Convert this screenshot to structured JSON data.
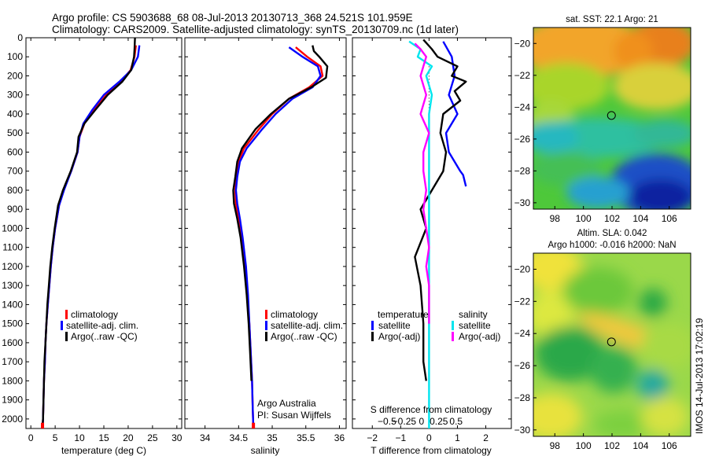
{
  "header": {
    "line1": "Argo profile: CS 5903688_68 08-Jul-2013 20130713_368 24.521S 101.959E",
    "line2": "Climatology: CARS2009. Satellite-adjusted climatology: synTS_20130709.nc (1d later)"
  },
  "credits": {
    "org": "Argo Australia",
    "pi": "PI: Susan Wijffels",
    "stamp": "IMOS 14-Jul-2013 17:02:19"
  },
  "colors": {
    "climatology": "#ff0000",
    "satellite": "#0000ff",
    "argo": "#000000",
    "sal_satellite": "#00e5ee",
    "sal_argo": "#ff00ff"
  },
  "chart_data": [
    {
      "type": "line",
      "name": "temperature",
      "xlabel": "temperature (deg C)",
      "ylabel": "",
      "xlim": [
        -1,
        31
      ],
      "ylim": [
        0,
        2050
      ],
      "xticks": [
        0,
        5,
        10,
        15,
        20,
        25,
        30
      ],
      "yticks": [
        0,
        100,
        200,
        300,
        400,
        500,
        600,
        700,
        800,
        900,
        1000,
        1100,
        1200,
        1300,
        1400,
        1500,
        1600,
        1700,
        1800,
        1900,
        2000
      ],
      "legend": [
        "climatology",
        "satellite-adj. clim.",
        "Argo(..raw -QC)"
      ],
      "series": [
        {
          "name": "climatology",
          "color": "#ff0000",
          "points": [
            [
              21.6,
              40
            ],
            [
              21.3,
              100
            ],
            [
              20.5,
              170
            ],
            [
              18.5,
              230
            ],
            [
              15.5,
              300
            ],
            [
              13,
              380
            ],
            [
              11,
              450
            ],
            [
              10,
              520
            ],
            [
              9.6,
              600
            ],
            [
              8.3,
              700
            ],
            [
              6.7,
              800
            ],
            [
              5.8,
              880
            ],
            [
              5,
              1000
            ],
            [
              4.5,
              1100
            ],
            [
              4.1,
              1200
            ],
            [
              3.8,
              1300
            ],
            [
              3.5,
              1400
            ],
            [
              3.2,
              1500
            ],
            [
              3,
              1600
            ],
            [
              2.9,
              1700
            ],
            [
              2.7,
              1800
            ],
            [
              2.6,
              1900
            ],
            [
              2.5,
              2000
            ],
            [
              2.4,
              2050
            ]
          ]
        },
        {
          "name": "satellite-adj. clim.",
          "color": "#0000ff",
          "points": [
            [
              22.3,
              40
            ],
            [
              22,
              100
            ],
            [
              20.6,
              170
            ],
            [
              18.2,
              230
            ],
            [
              15,
              300
            ],
            [
              12.6,
              380
            ],
            [
              10.8,
              450
            ],
            [
              10,
              520
            ],
            [
              9.6,
              600
            ],
            [
              8.3,
              700
            ],
            [
              6.8,
              800
            ],
            [
              5.8,
              880
            ],
            [
              5,
              1000
            ],
            [
              4.5,
              1100
            ],
            [
              4.1,
              1200
            ],
            [
              3.8,
              1300
            ],
            [
              3.5,
              1400
            ],
            [
              3.2,
              1500
            ],
            [
              3,
              1600
            ],
            [
              2.9,
              1700
            ],
            [
              2.7,
              1800
            ],
            [
              2.6,
              1900
            ],
            [
              2.5,
              2000
            ],
            [
              2.4,
              2050
            ]
          ]
        },
        {
          "name": "Argo(..raw -QC)",
          "color": "#000000",
          "points": [
            [
              21.4,
              0
            ],
            [
              21.3,
              60
            ],
            [
              21.2,
              100
            ],
            [
              20.6,
              170
            ],
            [
              18.8,
              230
            ],
            [
              15.8,
              300
            ],
            [
              13.2,
              380
            ],
            [
              11,
              450
            ],
            [
              9.8,
              520
            ],
            [
              9.5,
              600
            ],
            [
              8.2,
              700
            ],
            [
              6.6,
              800
            ],
            [
              5.6,
              880
            ],
            [
              4.9,
              1000
            ],
            [
              4.4,
              1100
            ],
            [
              4,
              1200
            ],
            [
              3.7,
              1300
            ],
            [
              3.4,
              1400
            ],
            [
              3.2,
              1500
            ],
            [
              3,
              1600
            ],
            [
              2.8,
              1700
            ],
            [
              2.7,
              1800
            ],
            [
              2.6,
              1900
            ],
            [
              2.5,
              2000
            ],
            [
              2.4,
              2050
            ]
          ]
        }
      ]
    },
    {
      "type": "line",
      "name": "salinity",
      "xlabel": "salinity",
      "xlim": [
        33.7,
        36.1
      ],
      "ylim": [
        0,
        2050
      ],
      "xticks": [
        34,
        34.5,
        35,
        35.5,
        36
      ],
      "xticklabels": [
        "34",
        "34.5",
        "35",
        "35.5",
        "36"
      ],
      "legend": [
        "climatology",
        "satellite-adj. clim.",
        "Argo(..raw -QC)"
      ],
      "series": [
        {
          "name": "climatology",
          "color": "#ff0000",
          "points": [
            [
              35.35,
              50
            ],
            [
              35.52,
              100
            ],
            [
              35.72,
              150
            ],
            [
              35.75,
              200
            ],
            [
              35.55,
              260
            ],
            [
              35.25,
              320
            ],
            [
              35,
              400
            ],
            [
              34.8,
              480
            ],
            [
              34.58,
              580
            ],
            [
              34.5,
              650
            ],
            [
              34.47,
              730
            ],
            [
              34.45,
              800
            ],
            [
              34.46,
              870
            ],
            [
              34.5,
              950
            ],
            [
              34.55,
              1050
            ],
            [
              34.6,
              1200
            ],
            [
              34.63,
              1350
            ],
            [
              34.66,
              1500
            ],
            [
              34.68,
              1650
            ],
            [
              34.7,
              1800
            ],
            [
              34.71,
              1950
            ],
            [
              34.72,
              2050
            ]
          ]
        },
        {
          "name": "satellite-adj. clim.",
          "color": "#0000ff",
          "points": [
            [
              35.25,
              50
            ],
            [
              35.45,
              100
            ],
            [
              35.68,
              150
            ],
            [
              35.72,
              200
            ],
            [
              35.6,
              260
            ],
            [
              35.3,
              320
            ],
            [
              35.05,
              400
            ],
            [
              34.85,
              480
            ],
            [
              34.62,
              580
            ],
            [
              34.52,
              650
            ],
            [
              34.48,
              730
            ],
            [
              34.46,
              800
            ],
            [
              34.48,
              870
            ],
            [
              34.52,
              950
            ],
            [
              34.56,
              1050
            ],
            [
              34.61,
              1200
            ],
            [
              34.64,
              1350
            ],
            [
              34.66,
              1500
            ],
            [
              34.68,
              1650
            ],
            [
              34.7,
              1800
            ],
            [
              34.71,
              1950
            ],
            [
              34.72,
              2050
            ]
          ]
        },
        {
          "name": "Argo(..raw -QC)",
          "color": "#000000",
          "points": [
            [
              35.6,
              40
            ],
            [
              35.62,
              70
            ],
            [
              35.7,
              100
            ],
            [
              35.82,
              150
            ],
            [
              35.8,
              210
            ],
            [
              35.58,
              260
            ],
            [
              35.25,
              320
            ],
            [
              34.98,
              400
            ],
            [
              34.75,
              480
            ],
            [
              34.55,
              580
            ],
            [
              34.48,
              650
            ],
            [
              34.45,
              730
            ],
            [
              34.42,
              800
            ],
            [
              34.43,
              870
            ],
            [
              34.48,
              950
            ],
            [
              34.53,
              1050
            ],
            [
              34.58,
              1200
            ],
            [
              34.62,
              1350
            ],
            [
              34.65,
              1500
            ],
            [
              34.67,
              1650
            ],
            [
              34.69,
              1800
            ]
          ]
        }
      ]
    },
    {
      "type": "line",
      "name": "difference",
      "xlabel_bottom": "T difference from climatology",
      "xlabel_top": "S difference from climatology",
      "xlim": [
        -2.7,
        2.9
      ],
      "ylim": [
        0,
        2050
      ],
      "xticks": [
        -2,
        -1,
        0,
        1,
        2
      ],
      "xticklabels": [
        "−2",
        "−1",
        "0",
        "1",
        "2"
      ],
      "sticks": [
        -0.5,
        -0.25,
        0,
        0.25,
        0.5
      ],
      "sticklabels": [
        "−0.5",
        "−0.25",
        "0",
        "0.25",
        "0.5"
      ],
      "legend_temperature_title": "temperature",
      "legend_salinity_title": "salinity",
      "legend_temperature": [
        "satellite",
        "Argo(-adj)"
      ],
      "legend_salinity": [
        "satellite",
        "Argo(-adj)"
      ],
      "series": [
        {
          "name": "T satellite",
          "color": "#0000ff",
          "points": [
            [
              0.5,
              20
            ],
            [
              0.8,
              100
            ],
            [
              0.9,
              200
            ],
            [
              0.7,
              300
            ],
            [
              1.0,
              400
            ],
            [
              0.6,
              500
            ],
            [
              0.7,
              600
            ],
            [
              1.1,
              700
            ],
            [
              1.2,
              720
            ],
            [
              1.3,
              780
            ]
          ]
        },
        {
          "name": "T Argo(-adj)",
          "color": "#000000",
          "points": [
            [
              -0.2,
              10
            ],
            [
              0.1,
              60
            ],
            [
              0.3,
              100
            ],
            [
              1.0,
              150
            ],
            [
              0.8,
              200
            ],
            [
              1.3,
              230
            ],
            [
              0.9,
              280
            ],
            [
              1.1,
              330
            ],
            [
              0.5,
              400
            ],
            [
              0.4,
              500
            ],
            [
              0.6,
              600
            ],
            [
              0.5,
              700
            ],
            [
              -0.3,
              900
            ],
            [
              -0.1,
              1000
            ],
            [
              -0.5,
              1150
            ],
            [
              -0.3,
              1300
            ],
            [
              -0.2,
              1500
            ],
            [
              -0.2,
              1700
            ],
            [
              -0.1,
              1800
            ]
          ]
        },
        {
          "name": "S satellite",
          "color": "#00e5ee",
          "points": [
            [
              -0.7,
              20
            ],
            [
              -0.3,
              60
            ],
            [
              -0.4,
              100
            ],
            [
              0.1,
              150
            ],
            [
              -0.1,
              200
            ],
            [
              0.1,
              300
            ],
            [
              0.0,
              400
            ],
            [
              0.0,
              600
            ],
            [
              0.0,
              900
            ],
            [
              0.0,
              1200
            ],
            [
              0.0,
              1500
            ],
            [
              0.0,
              1800
            ],
            [
              0.0,
              2000
            ],
            [
              0.0,
              2050
            ]
          ]
        },
        {
          "name": "S Argo(-adj)",
          "color": "#ff00ff",
          "points": [
            [
              -0.5,
              30
            ],
            [
              -0.3,
              60
            ],
            [
              -0.1,
              100
            ],
            [
              -0.3,
              200
            ],
            [
              -0.1,
              300
            ],
            [
              -0.3,
              400
            ],
            [
              0.0,
              500
            ],
            [
              -0.2,
              600
            ],
            [
              -0.2,
              700
            ],
            [
              -0.1,
              800
            ],
            [
              -0.2,
              900
            ],
            [
              -0.1,
              1000
            ],
            [
              0.0,
              1100
            ],
            [
              -0.1,
              1200
            ],
            [
              0.0,
              1300
            ],
            [
              0.0,
              1500
            ]
          ]
        }
      ]
    },
    {
      "type": "heatmap",
      "name": "sst-map",
      "title": "sat. SST: 22.1  Argo: 21",
      "xlim": [
        96.5,
        107.5
      ],
      "ylim": [
        -30.4,
        -19
      ],
      "xticks": [
        98,
        100,
        102,
        104,
        106
      ],
      "yticks": [
        -20,
        -22,
        -24,
        -26,
        -28,
        -30
      ],
      "marker": {
        "lon": 101.96,
        "lat": -24.52
      }
    },
    {
      "type": "heatmap",
      "name": "sla-map",
      "title_line1": "Altim. SLA: 0.042",
      "title_line2": "Argo h1000: -0.016  h2000: NaN",
      "xlim": [
        96.5,
        107.5
      ],
      "ylim": [
        -30.4,
        -19
      ],
      "xticks": [
        98,
        100,
        102,
        104,
        106
      ],
      "yticks": [
        -20,
        -22,
        -24,
        -26,
        -28,
        -30
      ],
      "marker": {
        "lon": 101.96,
        "lat": -24.52
      }
    }
  ]
}
